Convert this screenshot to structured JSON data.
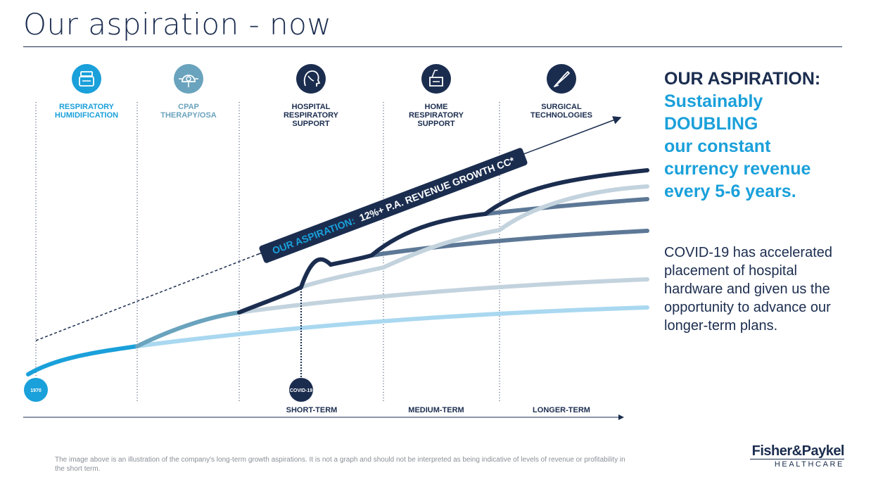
{
  "title": "Our aspiration - now",
  "segments": [
    {
      "label": "RESPIRATORY HUMIDIFICATION",
      "icon": "humidifier-icon",
      "color": "#1aa0da"
    },
    {
      "label": "CPAP THERAPY/OSA",
      "icon": "cpap-mask-icon",
      "color": "#6aa3bd"
    },
    {
      "label": "HOSPITAL RESPIRATORY SUPPORT",
      "icon": "patient-head-icon",
      "color": "#1b2d4f"
    },
    {
      "label": "HOME RESPIRATORY SUPPORT",
      "icon": "home-device-icon",
      "color": "#1b2d4f"
    },
    {
      "label": "SURGICAL TECHNOLOGIES",
      "icon": "scalpel-icon",
      "color": "#1b2d4f"
    }
  ],
  "trend_banner": {
    "prefix": "OUR ASPIRATION:",
    "text": "12%+ P.A. REVENUE GROWTH CC*"
  },
  "markers": {
    "start": "1970",
    "event": "COVID-19"
  },
  "terms": [
    "SHORT-TERM",
    "MEDIUM-TERM",
    "LONGER-TERM"
  ],
  "aspiration": {
    "heading": "OUR ASPIRATION:",
    "lines": [
      "Sustainably",
      "DOUBLING",
      "our constant",
      "currency revenue",
      "every 5-6 years."
    ]
  },
  "covid_note": "COVID-19 has accelerated placement of hospital hardware and given us the opportunity to advance our longer-term plans.",
  "footnote": "The image above is an illustration of the company's long-term growth aspirations. It is not a graph and should not be interpreted as being indicative of levels of revenue or profitability in the short term.",
  "logo": {
    "line1": "Fisher&Paykel",
    "line2": "HEALTHCARE"
  },
  "colors": {
    "navy": "#1b2d4f",
    "blue": "#1aa0da",
    "teal": "#6aa3bd",
    "light_blue": "#a9d8f0",
    "grey_blue": "#c3d3de",
    "slate": "#5d7896"
  }
}
